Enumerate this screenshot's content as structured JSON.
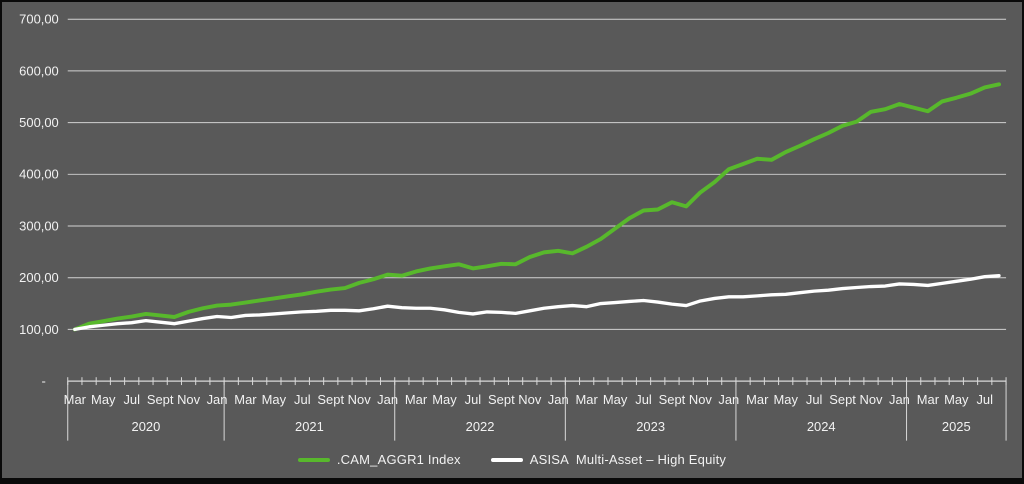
{
  "colors": {
    "background": "#595959",
    "border": "#0A0A0A",
    "gridline": "#D2D2D2",
    "axis": "#D9D9D9",
    "text": "#F2F2F2",
    "series_green": "#58B82C",
    "series_white": "#FFFFFF"
  },
  "y_axis": {
    "labels": [
      {
        "text": "700,00",
        "value": 700
      },
      {
        "text": "600,00",
        "value": 600
      },
      {
        "text": "500,00",
        "value": 500
      },
      {
        "text": "400,00",
        "value": 400
      },
      {
        "text": "300,00",
        "value": 300
      },
      {
        "text": "200,00",
        "value": 200
      },
      {
        "text": "100,00",
        "value": 100
      },
      {
        "text": "-",
        "value": 0
      }
    ]
  },
  "x_axis": {
    "total_slots": 66,
    "groups": [
      {
        "year": "2020",
        "start_slot": 0,
        "slot_count": 11,
        "month_labels": [
          {
            "text": "Mar",
            "slot": 0
          },
          {
            "text": "May",
            "slot": 2
          },
          {
            "text": "Jul",
            "slot": 4
          },
          {
            "text": "Sept",
            "slot": 6
          },
          {
            "text": "Nov",
            "slot": 8
          },
          {
            "text": "Jan",
            "slot": 10
          }
        ]
      },
      {
        "year": "2021",
        "start_slot": 11,
        "slot_count": 12,
        "month_labels": [
          {
            "text": "Mar",
            "slot": 12
          },
          {
            "text": "May",
            "slot": 14
          },
          {
            "text": "Jul",
            "slot": 16
          },
          {
            "text": "Sept",
            "slot": 18
          },
          {
            "text": "Nov",
            "slot": 20
          },
          {
            "text": "Jan",
            "slot": 22
          }
        ]
      },
      {
        "year": "2022",
        "start_slot": 23,
        "slot_count": 12,
        "month_labels": [
          {
            "text": "Mar",
            "slot": 24
          },
          {
            "text": "May",
            "slot": 26
          },
          {
            "text": "Jul",
            "slot": 28
          },
          {
            "text": "Sept",
            "slot": 30
          },
          {
            "text": "Nov",
            "slot": 32
          },
          {
            "text": "Jan",
            "slot": 34
          }
        ]
      },
      {
        "year": "2023",
        "start_slot": 35,
        "slot_count": 12,
        "month_labels": [
          {
            "text": "Mar",
            "slot": 36
          },
          {
            "text": "May",
            "slot": 38
          },
          {
            "text": "Jul",
            "slot": 40
          },
          {
            "text": "Sept",
            "slot": 42
          },
          {
            "text": "Nov",
            "slot": 44
          },
          {
            "text": "Jan",
            "slot": 46
          }
        ]
      },
      {
        "year": "2024",
        "start_slot": 47,
        "slot_count": 12,
        "month_labels": [
          {
            "text": "Mar",
            "slot": 48
          },
          {
            "text": "May",
            "slot": 50
          },
          {
            "text": "Jul",
            "slot": 52
          },
          {
            "text": "Sept",
            "slot": 54
          },
          {
            "text": "Nov",
            "slot": 56
          },
          {
            "text": "Jan",
            "slot": 58
          }
        ]
      },
      {
        "year": "2025",
        "start_slot": 59,
        "slot_count": 7,
        "month_labels": [
          {
            "text": "Mar",
            "slot": 60
          },
          {
            "text": "May",
            "slot": 62
          },
          {
            "text": "Jul",
            "slot": 64
          }
        ]
      }
    ]
  },
  "legend": {
    "items": [
      {
        "label": ".CAM_AGGR1 Index",
        "color": "#58B82C"
      },
      {
        "label": "ASISA  Multi-Asset – High Equity",
        "color": "#FFFFFF"
      }
    ]
  },
  "chart_data": {
    "type": "line",
    "title": "",
    "x_frequency": "monthly",
    "x_range": "Mar 2020 – Aug 2025",
    "xlabel": "",
    "ylabel": "",
    "ylim": [
      0,
      700
    ],
    "y_tick_labels": [
      "-",
      "100,00",
      "200,00",
      "300,00",
      "400,00",
      "500,00",
      "600,00",
      "700,00"
    ],
    "x_month_tick_labels_per_year": [
      "Mar",
      "May",
      "Jul",
      "Sept",
      "Nov",
      "Jan"
    ],
    "x_year_labels": [
      "2020",
      "2021",
      "2022",
      "2023",
      "2024",
      "2025"
    ],
    "grid": "horizontal",
    "legend_position": "bottom-center",
    "series": [
      {
        "name": ".CAM_AGGR1 Index",
        "color": "#58B82C",
        "start_month": "2020-03",
        "values": [
          100,
          111,
          116,
          121,
          125,
          130,
          127,
          124,
          134,
          141,
          146,
          148,
          152,
          156,
          160,
          164,
          168,
          173,
          177,
          180,
          190,
          197,
          206,
          204,
          212,
          218,
          222,
          226,
          218,
          222,
          227,
          226,
          240,
          249,
          252,
          247,
          260,
          275,
          295,
          315,
          330,
          332,
          346,
          338,
          365,
          385,
          410,
          420,
          430,
          428,
          443,
          455,
          468,
          480,
          494,
          502,
          521,
          526,
          536,
          529,
          522,
          541,
          548,
          556,
          568,
          574
        ]
      },
      {
        "name": "ASISA  Multi-Asset – High Equity",
        "color": "#FFFFFF",
        "start_month": "2020-03",
        "values": [
          100,
          105,
          108,
          111,
          113,
          117,
          114,
          111,
          116,
          121,
          125,
          123,
          127,
          128,
          130,
          132,
          134,
          135,
          137,
          137,
          136,
          140,
          145,
          142,
          141,
          141,
          138,
          133,
          130,
          134,
          133,
          131,
          136,
          141,
          144,
          146,
          144,
          150,
          152,
          154,
          156,
          153,
          149,
          146,
          155,
          160,
          163,
          163,
          165,
          167,
          168,
          171,
          174,
          176,
          179,
          181,
          183,
          184,
          188,
          187,
          185,
          189,
          193,
          197,
          202,
          204
        ]
      }
    ]
  }
}
